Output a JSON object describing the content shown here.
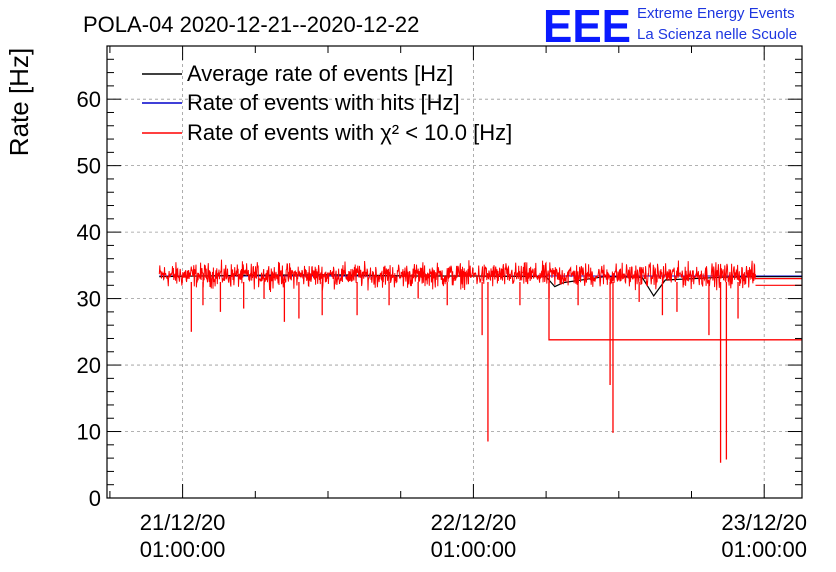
{
  "chart_data": {
    "type": "line",
    "title": "POLA-04 2020-12-21--2020-12-22",
    "xlabel": "",
    "ylabel": "Rate [Hz]",
    "xlim": [
      -0.26,
      2.13
    ],
    "ylim": [
      0,
      68
    ],
    "y_ticks": [
      0,
      10,
      20,
      30,
      40,
      50,
      60
    ],
    "x_ticks": [
      {
        "value": 0,
        "date": "21/12/20",
        "time": "01:00:00"
      },
      {
        "value": 1,
        "date": "22/12/20",
        "time": "01:00:00"
      },
      {
        "value": 2,
        "date": "23/12/20",
        "time": "01:00:00"
      }
    ],
    "grid": true,
    "legend_position": "top-left",
    "baseline": {
      "start": -0.08,
      "end": 1.97,
      "mean": 33.5,
      "noise": 1.1
    },
    "series": [
      {
        "name": "Average rate of events [Hz]",
        "color": "#000000",
        "points": [
          [
            -0.08,
            33.3
          ],
          [
            0.2,
            33.5
          ],
          [
            0.5,
            33.6
          ],
          [
            0.8,
            33.4
          ],
          [
            1.0,
            33.4
          ],
          [
            1.25,
            33.3
          ],
          [
            1.28,
            31.8
          ],
          [
            1.31,
            32.4
          ],
          [
            1.45,
            33.3
          ],
          [
            1.58,
            33.2
          ],
          [
            1.62,
            30.4
          ],
          [
            1.66,
            32.8
          ],
          [
            1.85,
            33.2
          ],
          [
            1.97,
            33.3
          ],
          [
            2.13,
            33.3
          ]
        ]
      },
      {
        "name": "Rate of events with hits [Hz]",
        "color": "#0000cc",
        "points": [
          [
            -0.08,
            33.4
          ],
          [
            1.97,
            33.4
          ],
          [
            2.13,
            33.4
          ]
        ]
      },
      {
        "name": "Rate of events with χ² < 10.0 [Hz]",
        "color": "#ff0000",
        "spikes": [
          [
            0.03,
            25.0
          ],
          [
            0.07,
            29.0
          ],
          [
            0.13,
            28.0
          ],
          [
            0.21,
            28.5
          ],
          [
            0.28,
            30.0
          ],
          [
            0.35,
            26.5
          ],
          [
            0.4,
            27.0
          ],
          [
            0.48,
            27.5
          ],
          [
            0.6,
            27.5
          ],
          [
            0.71,
            29.0
          ],
          [
            0.81,
            30.0
          ],
          [
            0.91,
            29.0
          ],
          [
            1.03,
            24.5
          ],
          [
            1.05,
            8.5
          ],
          [
            1.16,
            29.0
          ],
          [
            1.26,
            30.0
          ],
          [
            1.36,
            29.0
          ],
          [
            1.47,
            17.0
          ],
          [
            1.48,
            9.8
          ],
          [
            1.57,
            29.5
          ],
          [
            1.65,
            27.5
          ],
          [
            1.7,
            28.0
          ],
          [
            1.81,
            24.5
          ],
          [
            1.85,
            5.3
          ],
          [
            1.87,
            5.8
          ],
          [
            1.91,
            27.0
          ]
        ],
        "tail": {
          "upper": [
            [
              1.97,
              33.0
            ],
            [
              2.13,
              33.0
            ]
          ],
          "mid": [
            [
              1.97,
              32.0
            ],
            [
              2.13,
              32.0
            ]
          ],
          "step": [
            [
              1.26,
              33.2
            ],
            [
              1.26,
              23.8
            ],
            [
              2.13,
              23.8
            ]
          ]
        }
      }
    ]
  }
}
